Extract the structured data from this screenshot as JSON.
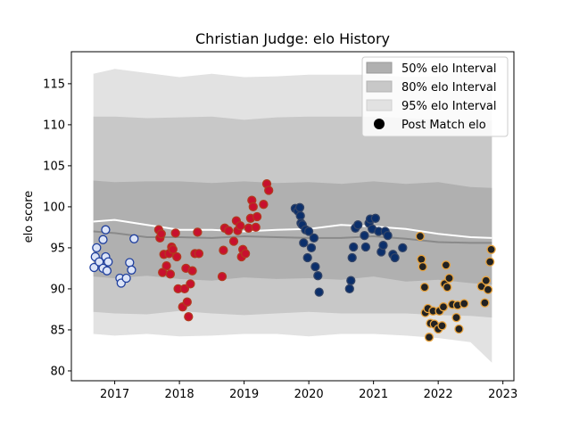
{
  "chart_data": {
    "type": "scatter",
    "title": "Christian Judge: elo History",
    "xlabel": "",
    "ylabel": "elo score",
    "xlim": [
      2016.33,
      2023.17
    ],
    "ylim": [
      78.8,
      118.9
    ],
    "x_ticks": [
      2017,
      2018,
      2019,
      2020,
      2021,
      2022,
      2023
    ],
    "y_ticks": [
      80,
      85,
      90,
      95,
      100,
      105,
      110,
      115
    ],
    "legend_position": "top-right",
    "legend": [
      {
        "label": "50% elo Interval",
        "kind": "patch",
        "color": "#b0b0b0"
      },
      {
        "label": "80% elo Interval",
        "kind": "patch",
        "color": "#c8c8c8"
      },
      {
        "label": "95% elo Interval",
        "kind": "patch",
        "color": "#e2e2e2"
      },
      {
        "label": "Post Match elo",
        "kind": "marker",
        "color": "#000000"
      }
    ],
    "bands": {
      "x": [
        2016.67,
        2017.0,
        2017.5,
        2018.0,
        2018.5,
        2019.0,
        2019.5,
        2020.0,
        2020.5,
        2021.0,
        2021.5,
        2022.0,
        2022.5,
        2022.83
      ],
      "p95_upper": [
        116.2,
        116.8,
        116.3,
        115.8,
        116.2,
        115.8,
        115.9,
        116.1,
        116.1,
        116.1,
        115.8,
        115.9,
        117.2,
        117.2
      ],
      "p95_lower": [
        84.5,
        84.3,
        84.5,
        84.2,
        84.3,
        84.5,
        84.5,
        84.2,
        84.5,
        84.5,
        84.3,
        84.0,
        83.5,
        81.0
      ],
      "p80_upper": [
        111.0,
        111.0,
        110.8,
        110.9,
        111.0,
        110.6,
        110.9,
        111.0,
        111.0,
        111.0,
        110.8,
        110.6,
        110.5,
        110.5
      ],
      "p80_lower": [
        87.2,
        87.0,
        86.9,
        87.3,
        87.0,
        86.8,
        87.0,
        87.2,
        87.0,
        87.0,
        87.0,
        86.8,
        86.7,
        86.5
      ],
      "p50_upper": [
        103.2,
        103.0,
        103.1,
        103.1,
        102.9,
        103.1,
        102.9,
        103.0,
        102.8,
        103.1,
        102.8,
        103.0,
        102.4,
        102.3
      ],
      "p50_lower": [
        91.5,
        91.3,
        91.6,
        91.2,
        91.0,
        91.4,
        91.2,
        91.3,
        91.1,
        91.5,
        90.9,
        91.1,
        90.7,
        90.5
      ],
      "mean": [
        97.0,
        96.8,
        96.3,
        96.3,
        96.2,
        96.4,
        96.3,
        96.2,
        96.2,
        96.4,
        96.1,
        95.7,
        95.6,
        95.6
      ],
      "line_white": [
        98.2,
        98.4,
        97.8,
        97.2,
        97.2,
        97.0,
        97.2,
        97.3,
        97.8,
        97.6,
        97.3,
        96.7,
        96.3,
        96.2
      ]
    },
    "series": [
      {
        "fill": "#dce4f7",
        "edge": "#1f3f9e",
        "points": [
          [
            2016.68,
            92.6
          ],
          [
            2016.7,
            93.9
          ],
          [
            2016.72,
            95.0
          ],
          [
            2016.76,
            93.3
          ],
          [
            2016.82,
            96.0
          ],
          [
            2016.82,
            92.5
          ],
          [
            2016.86,
            97.2
          ],
          [
            2016.86,
            93.9
          ],
          [
            2016.88,
            92.2
          ],
          [
            2016.9,
            93.3
          ],
          [
            2017.08,
            91.3
          ],
          [
            2017.1,
            90.7
          ],
          [
            2017.18,
            91.3
          ],
          [
            2017.23,
            93.2
          ],
          [
            2017.26,
            92.3
          ],
          [
            2017.3,
            96.1
          ]
        ]
      },
      {
        "fill": "#c8102e",
        "edge": "#b23a1e",
        "points": [
          [
            2017.68,
            97.2
          ],
          [
            2017.7,
            96.2
          ],
          [
            2017.72,
            96.7
          ],
          [
            2017.74,
            92.0
          ],
          [
            2017.76,
            94.2
          ],
          [
            2017.8,
            92.8
          ],
          [
            2017.84,
            94.3
          ],
          [
            2017.86,
            91.8
          ],
          [
            2017.88,
            95.1
          ],
          [
            2017.9,
            94.8
          ],
          [
            2017.94,
            96.8
          ],
          [
            2017.96,
            93.9
          ],
          [
            2017.98,
            90.0
          ],
          [
            2018.05,
            87.8
          ],
          [
            2018.08,
            90.0
          ],
          [
            2018.1,
            92.5
          ],
          [
            2018.12,
            88.4
          ],
          [
            2018.14,
            86.6
          ],
          [
            2018.17,
            90.6
          ],
          [
            2018.2,
            92.2
          ],
          [
            2018.24,
            94.3
          ],
          [
            2018.28,
            96.9
          ],
          [
            2018.3,
            94.3
          ],
          [
            2018.66,
            91.5
          ],
          [
            2018.68,
            94.7
          ],
          [
            2018.7,
            97.4
          ],
          [
            2018.76,
            97.1
          ],
          [
            2018.84,
            95.8
          ],
          [
            2018.88,
            98.3
          ],
          [
            2018.9,
            97.1
          ],
          [
            2018.94,
            97.7
          ],
          [
            2018.96,
            93.9
          ],
          [
            2018.98,
            94.8
          ],
          [
            2019.02,
            94.3
          ],
          [
            2019.07,
            97.4
          ],
          [
            2019.1,
            98.6
          ],
          [
            2019.12,
            100.8
          ],
          [
            2019.14,
            100.0
          ],
          [
            2019.18,
            97.5
          ],
          [
            2019.2,
            98.8
          ],
          [
            2019.3,
            100.3
          ],
          [
            2019.35,
            102.8
          ],
          [
            2019.38,
            102.0
          ]
        ]
      },
      {
        "fill": "#0b2f6b",
        "edge": "#334466",
        "points": [
          [
            2019.79,
            99.8
          ],
          [
            2019.83,
            99.5
          ],
          [
            2019.86,
            99.9
          ],
          [
            2019.87,
            98.9
          ],
          [
            2019.88,
            98.0
          ],
          [
            2019.9,
            97.8
          ],
          [
            2019.92,
            95.6
          ],
          [
            2019.95,
            97.2
          ],
          [
            2019.98,
            93.8
          ],
          [
            2020.0,
            97.0
          ],
          [
            2020.04,
            95.0
          ],
          [
            2020.08,
            96.2
          ],
          [
            2020.1,
            92.7
          ],
          [
            2020.14,
            91.6
          ],
          [
            2020.16,
            89.6
          ],
          [
            2020.63,
            90.0
          ],
          [
            2020.65,
            91.0
          ],
          [
            2020.67,
            93.8
          ],
          [
            2020.69,
            95.1
          ],
          [
            2020.72,
            97.4
          ],
          [
            2020.76,
            97.8
          ],
          [
            2020.86,
            96.5
          ],
          [
            2020.88,
            95.1
          ],
          [
            2020.93,
            98.0
          ],
          [
            2020.95,
            98.5
          ],
          [
            2020.98,
            97.3
          ],
          [
            2021.03,
            98.6
          ],
          [
            2021.08,
            97.0
          ],
          [
            2021.12,
            94.5
          ],
          [
            2021.15,
            95.3
          ],
          [
            2021.18,
            97.0
          ],
          [
            2021.22,
            96.5
          ],
          [
            2021.3,
            94.2
          ],
          [
            2021.33,
            93.8
          ],
          [
            2021.45,
            95.0
          ]
        ]
      },
      {
        "fill": "#222222",
        "edge": "#e8a33d",
        "points": [
          [
            2021.72,
            96.4
          ],
          [
            2021.74,
            93.6
          ],
          [
            2021.76,
            92.7
          ],
          [
            2021.79,
            90.2
          ],
          [
            2021.8,
            87.1
          ],
          [
            2021.84,
            87.6
          ],
          [
            2021.86,
            84.1
          ],
          [
            2021.88,
            85.8
          ],
          [
            2021.92,
            87.3
          ],
          [
            2021.94,
            85.7
          ],
          [
            2022.0,
            85.1
          ],
          [
            2022.02,
            87.3
          ],
          [
            2022.06,
            85.5
          ],
          [
            2022.08,
            87.8
          ],
          [
            2022.1,
            90.6
          ],
          [
            2022.12,
            92.9
          ],
          [
            2022.14,
            90.2
          ],
          [
            2022.17,
            91.3
          ],
          [
            2022.22,
            88.1
          ],
          [
            2022.28,
            86.5
          ],
          [
            2022.3,
            88.0
          ],
          [
            2022.32,
            85.1
          ],
          [
            2022.4,
            88.2
          ],
          [
            2022.67,
            90.3
          ],
          [
            2022.72,
            88.3
          ],
          [
            2022.74,
            91.0
          ],
          [
            2022.77,
            89.9
          ],
          [
            2022.8,
            93.3
          ],
          [
            2022.82,
            94.8
          ]
        ]
      }
    ]
  }
}
